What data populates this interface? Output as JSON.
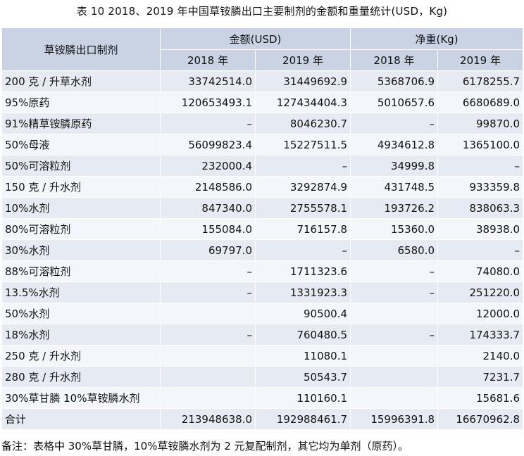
{
  "title": "表 10  2018、2019 年中国草铵膦出口主要制剂的金额和重量统计(USD，Kg)",
  "table": {
    "header": {
      "name_col": "草铵膦出口制剂",
      "group_amount": "金额(USD)",
      "group_weight": "净重(Kg)",
      "y2018": "2018 年",
      "y2019": "2019 年"
    },
    "rows": [
      {
        "name": "200 克 / 升草水剂",
        "a2018": "33742514.0",
        "a2019": "31449692.9",
        "w2018": "5368706.9",
        "w2019": "6178255.7"
      },
      {
        "name": "95%原药",
        "a2018": "120653493.1",
        "a2019": "127434404.3",
        "w2018": "5010657.6",
        "w2019": "6680689.0"
      },
      {
        "name": "91%精草铵膦原药",
        "a2018": "–",
        "a2019": "8046230.7",
        "w2018": "–",
        "w2019": "99870.0"
      },
      {
        "name": "50%母液",
        "a2018": "56099823.4",
        "a2019": "15227511.5",
        "w2018": "4934612.8",
        "w2019": "1365100.0"
      },
      {
        "name": "50%可溶粒剂",
        "a2018": "232000.4",
        "a2019": "–",
        "w2018": "34999.8",
        "w2019": "–"
      },
      {
        "name": "150 克 / 升水剂",
        "a2018": "2148586.0",
        "a2019": "3292874.9",
        "w2018": "431748.5",
        "w2019": "933359.8"
      },
      {
        "name": "10%水剂",
        "a2018": "847340.0",
        "a2019": "2755578.1",
        "w2018": "193726.2",
        "w2019": "838063.3"
      },
      {
        "name": "80%可溶粒剂",
        "a2018": "155084.0",
        "a2019": "716157.8",
        "w2018": "15360.0",
        "w2019": "38938.0"
      },
      {
        "name": "30%水剂",
        "a2018": "69797.0",
        "a2019": "–",
        "w2018": "6580.0",
        "w2019": "–"
      },
      {
        "name": "88%可溶粒剂",
        "a2018": "–",
        "a2019": "1711323.6",
        "w2018": "–",
        "w2019": "74080.0"
      },
      {
        "name": "13.5%水剂",
        "a2018": "–",
        "a2019": "1331923.3",
        "w2018": "–",
        "w2019": "251220.0"
      },
      {
        "name": "50%水剂",
        "a2018": "",
        "a2019": "90500.4",
        "w2018": "",
        "w2019": "12000.0"
      },
      {
        "name": "18%水剂",
        "a2018": "–",
        "a2019": "760480.5",
        "w2018": "–",
        "w2019": "174333.7"
      },
      {
        "name": "250 克 / 升水剂",
        "a2018": "",
        "a2019": "11080.1",
        "w2018": "",
        "w2019": "2140.0"
      },
      {
        "name": "280 克 / 升水剂",
        "a2018": "",
        "a2019": "50543.7",
        "w2018": "",
        "w2019": "7231.7"
      },
      {
        "name": "30%草甘膦 10%草铵膦水剂",
        "a2018": "",
        "a2019": "110160.1",
        "w2018": "",
        "w2019": "15681.6"
      },
      {
        "name": "合计",
        "a2018": "213948638.0",
        "a2019": "192988461.7",
        "w2018": "15996391.8",
        "w2019": "16670962.8"
      }
    ]
  },
  "note": "备注：表格中 30%草甘膦，10%草铵膦水剂为 2 元复配制剂，其它均为单剂（原药）。"
}
